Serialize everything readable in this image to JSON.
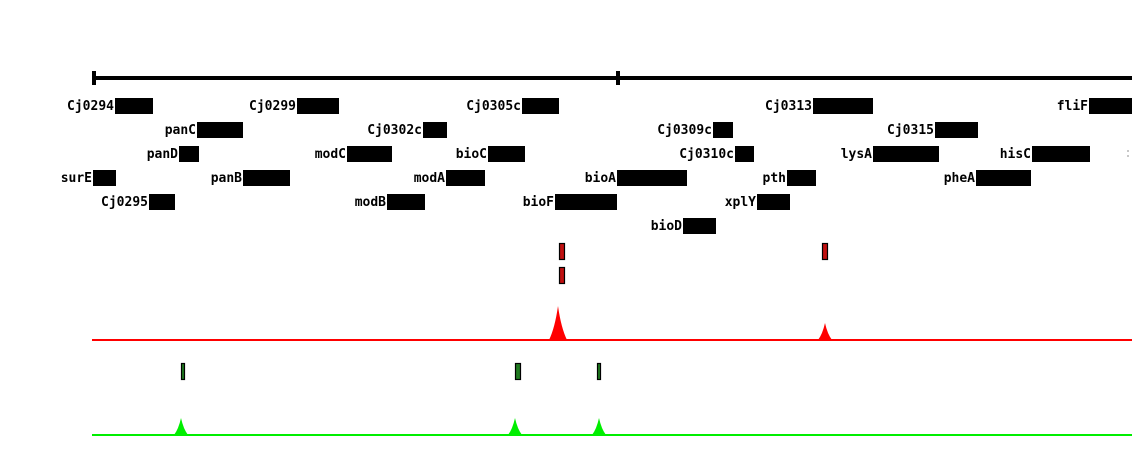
{
  "browser": {
    "genes": [
      {
        "label": "Cj0294"
      },
      {
        "label": "Cj0299"
      },
      {
        "label": "Cj0305c"
      },
      {
        "label": "Cj0313"
      },
      {
        "label": "fliF"
      },
      {
        "label": "panC"
      },
      {
        "label": "Cj0302c"
      },
      {
        "label": "Cj0309c"
      },
      {
        "label": "Cj0315"
      },
      {
        "label": "panD"
      },
      {
        "label": "modC"
      },
      {
        "label": "bioC"
      },
      {
        "label": "Cj0310c"
      },
      {
        "label": "lysA"
      },
      {
        "label": "hisC"
      },
      {
        "label": "surE"
      },
      {
        "label": "panB"
      },
      {
        "label": "modA"
      },
      {
        "label": "bioA"
      },
      {
        "label": "pth"
      },
      {
        "label": "pheA"
      },
      {
        "label": "Cj0295"
      },
      {
        "label": "modB"
      },
      {
        "label": "bioF"
      },
      {
        "label": "xplY"
      },
      {
        "label": "bioD"
      }
    ],
    "tracks": [
      {
        "color": "#ff0000",
        "marker_fill": "#c01010"
      },
      {
        "color": "#00ee00",
        "marker_fill": "#1f7a1f"
      }
    ]
  }
}
